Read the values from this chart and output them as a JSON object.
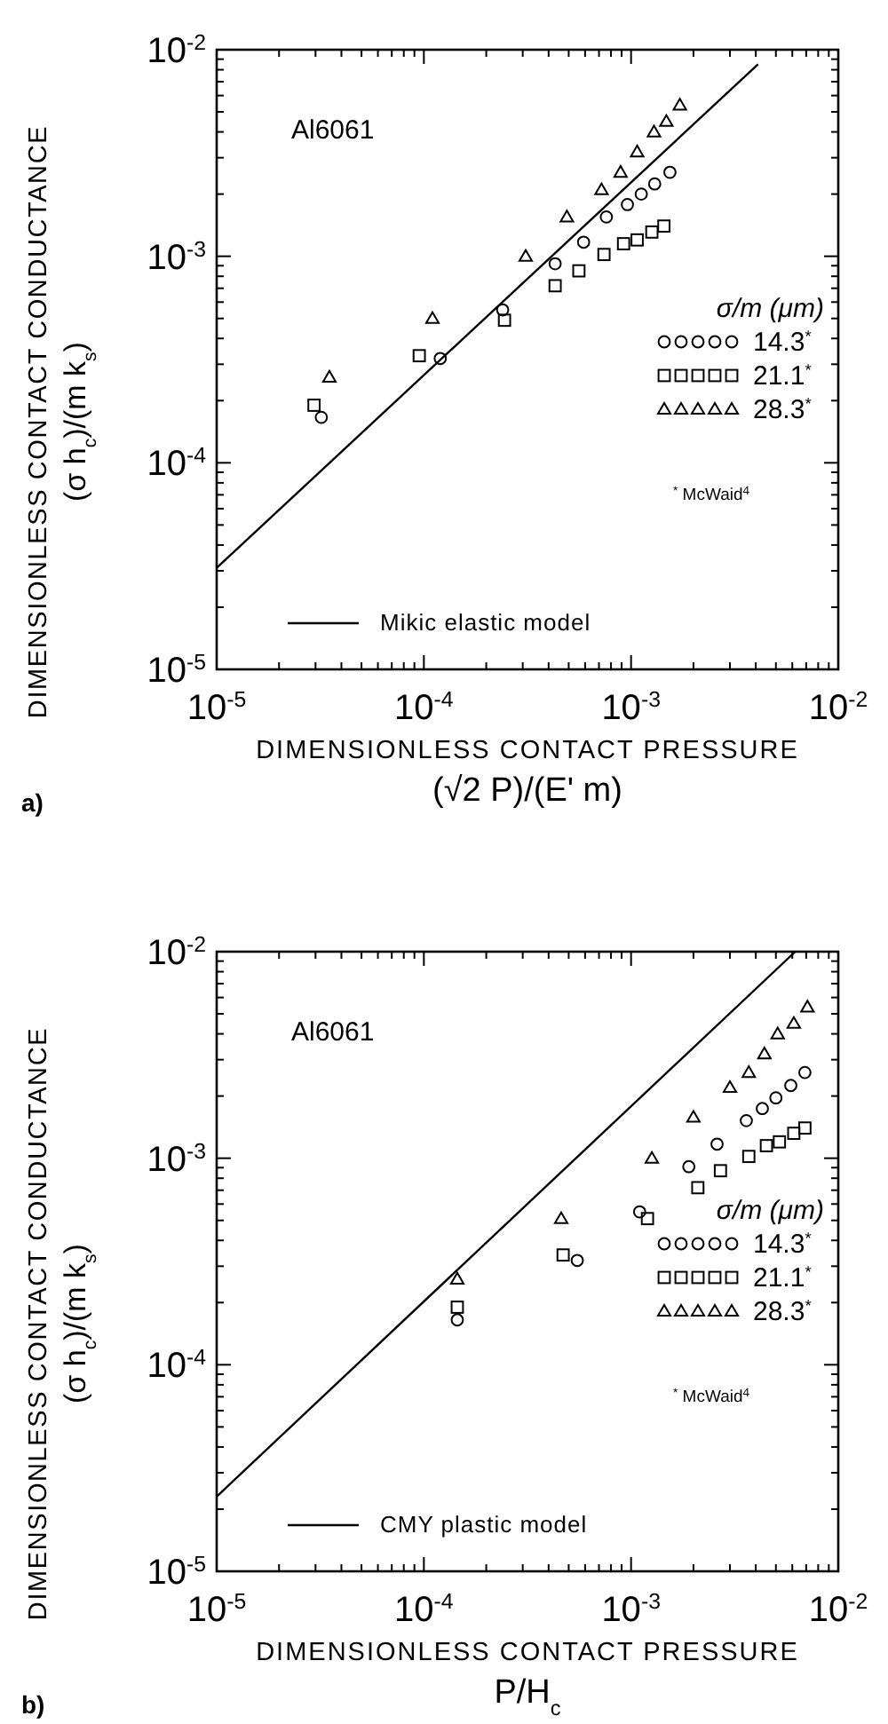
{
  "chart_data": [
    {
      "type": "scatter",
      "xlabel": "DIMENSIONLESS CONTACT PRESSURE\n(√2 P)/(E' m)",
      "ylabel": "DIMENSIONLESS CONTACT CONDUCTANCE\n(σ h$_{c}$)/(m k$_{s}$)",
      "log": "xy",
      "grid": false,
      "legend": "right",
      "legend_title": "σ/m (μm)",
      "annotations": [
        "Al6061",
        "$^{*}$ McWaid$^{4}$",
        "a)"
      ],
      "xlim": [
        1e-05,
        0.01
      ],
      "ylim": [
        1e-05,
        0.01
      ],
      "xticks": [
        {
          "value": 1e-05,
          "label": "10$^{-5}$"
        },
        {
          "value": 2e-05,
          "label": null
        },
        {
          "value": 3e-05,
          "label": null
        },
        {
          "value": 4e-05,
          "label": null
        },
        {
          "value": 5e-05,
          "label": null
        },
        {
          "value": 6e-05,
          "label": null
        },
        {
          "value": 7e-05,
          "label": null
        },
        {
          "value": 8e-05,
          "label": null
        },
        {
          "value": 9e-05,
          "label": null
        },
        {
          "value": 0.0001,
          "label": "10$^{-4}$"
        },
        {
          "value": 0.0002,
          "label": null
        },
        {
          "value": 0.0003,
          "label": null
        },
        {
          "value": 0.0004,
          "label": null
        },
        {
          "value": 0.0005,
          "label": null
        },
        {
          "value": 0.0006,
          "label": null
        },
        {
          "value": 0.0007,
          "label": null
        },
        {
          "value": 0.0008,
          "label": null
        },
        {
          "value": 0.0009,
          "label": null
        },
        {
          "value": 0.001,
          "label": "10$^{-3}$"
        },
        {
          "value": 0.002,
          "label": null
        },
        {
          "value": 0.003,
          "label": null
        },
        {
          "value": 0.004,
          "label": null
        },
        {
          "value": 0.005,
          "label": null
        },
        {
          "value": 0.006,
          "label": null
        },
        {
          "value": 0.007,
          "label": null
        },
        {
          "value": 0.008,
          "label": null
        },
        {
          "value": 0.009,
          "label": null
        },
        {
          "value": 0.01,
          "label": "10$^{-2}$"
        }
      ],
      "yticks": [
        {
          "value": 1e-05,
          "label": "10$^{-5}$"
        },
        {
          "value": 2e-05,
          "label": null
        },
        {
          "value": 3e-05,
          "label": null
        },
        {
          "value": 4e-05,
          "label": null
        },
        {
          "value": 5e-05,
          "label": null
        },
        {
          "value": 6e-05,
          "label": null
        },
        {
          "value": 7e-05,
          "label": null
        },
        {
          "value": 8e-05,
          "label": null
        },
        {
          "value": 9e-05,
          "label": null
        },
        {
          "value": 0.0001,
          "label": "10$^{-4}$"
        },
        {
          "value": 0.0002,
          "label": null
        },
        {
          "value": 0.0003,
          "label": null
        },
        {
          "value": 0.0004,
          "label": null
        },
        {
          "value": 0.0005,
          "label": null
        },
        {
          "value": 0.0006,
          "label": null
        },
        {
          "value": 0.0007,
          "label": null
        },
        {
          "value": 0.0008,
          "label": null
        },
        {
          "value": 0.0009,
          "label": null
        },
        {
          "value": 0.001,
          "label": "10$^{-3}$"
        },
        {
          "value": 0.002,
          "label": null
        },
        {
          "value": 0.003,
          "label": null
        },
        {
          "value": 0.004,
          "label": null
        },
        {
          "value": 0.005,
          "label": null
        },
        {
          "value": 0.006,
          "label": null
        },
        {
          "value": 0.007,
          "label": null
        },
        {
          "value": 0.008,
          "label": null
        },
        {
          "value": 0.009,
          "label": null
        },
        {
          "value": 0.01,
          "label": "10$^{-2}$"
        }
      ],
      "series": [
        {
          "name": "14.3$^{*}$",
          "color": "#000000",
          "marker": "circle",
          "x": [
            3.2e-05,
            0.00012,
            0.00024,
            0.00043,
            0.00059,
            0.00076,
            0.00096,
            0.00112,
            0.0013,
            0.00154
          ],
          "values": [
            0.000166,
            0.00032,
            0.00055,
            0.00092,
            0.00117,
            0.00155,
            0.00178,
            0.002,
            0.00224,
            0.00255
          ]
        },
        {
          "name": "21.1$^{*}$",
          "color": "#000000",
          "marker": "square",
          "x": [
            2.95e-05,
            9.5e-05,
            0.000245,
            0.00043,
            0.00056,
            0.00074,
            0.00092,
            0.00107,
            0.00126,
            0.00144
          ],
          "values": [
            0.00019,
            0.00033,
            0.00049,
            0.00072,
            0.00085,
            0.00102,
            0.00115,
            0.0012,
            0.00131,
            0.0014
          ]
        },
        {
          "name": "28.3$^{*}$",
          "color": "#000000",
          "marker": "triangle",
          "x": [
            3.5e-05,
            0.00011,
            0.00031,
            0.00049,
            0.00072,
            0.00089,
            0.00107,
            0.00129,
            0.00148,
            0.00172
          ],
          "values": [
            0.00026,
            0.0005,
            0.001,
            0.00155,
            0.0021,
            0.00255,
            0.0032,
            0.004,
            0.0045,
            0.0054
          ]
        },
        {
          "name": "Mikic elastic model",
          "type": "line",
          "color": "#000000",
          "line_style": "solid",
          "x": [
            1e-05,
            0.0041
          ],
          "values": [
            3.1e-05,
            0.0085
          ]
        }
      ]
    },
    {
      "type": "scatter",
      "xlabel": "DIMENSIONLESS CONTACT PRESSURE\nP/H$_{c}$",
      "ylabel": "DIMENSIONLESS CONTACT CONDUCTANCE\n(σ h$_{c}$)/(m k$_{s}$)",
      "log": "xy",
      "grid": false,
      "legend": "right",
      "legend_title": "σ/m (μm)",
      "annotations": [
        "Al6061",
        "$^{*}$ McWaid$^{4}$",
        "b)"
      ],
      "xlim": [
        1e-05,
        0.01
      ],
      "ylim": [
        1e-05,
        0.01
      ],
      "xticks": [
        {
          "value": 1e-05,
          "label": "10$^{-5}$"
        },
        {
          "value": 2e-05,
          "label": null
        },
        {
          "value": 3e-05,
          "label": null
        },
        {
          "value": 4e-05,
          "label": null
        },
        {
          "value": 5e-05,
          "label": null
        },
        {
          "value": 6e-05,
          "label": null
        },
        {
          "value": 7e-05,
          "label": null
        },
        {
          "value": 8e-05,
          "label": null
        },
        {
          "value": 9e-05,
          "label": null
        },
        {
          "value": 0.0001,
          "label": "10$^{-4}$"
        },
        {
          "value": 0.0002,
          "label": null
        },
        {
          "value": 0.0003,
          "label": null
        },
        {
          "value": 0.0004,
          "label": null
        },
        {
          "value": 0.0005,
          "label": null
        },
        {
          "value": 0.0006,
          "label": null
        },
        {
          "value": 0.0007,
          "label": null
        },
        {
          "value": 0.0008,
          "label": null
        },
        {
          "value": 0.0009,
          "label": null
        },
        {
          "value": 0.001,
          "label": "10$^{-3}$"
        },
        {
          "value": 0.002,
          "label": null
        },
        {
          "value": 0.003,
          "label": null
        },
        {
          "value": 0.004,
          "label": null
        },
        {
          "value": 0.005,
          "label": null
        },
        {
          "value": 0.006,
          "label": null
        },
        {
          "value": 0.007,
          "label": null
        },
        {
          "value": 0.008,
          "label": null
        },
        {
          "value": 0.009,
          "label": null
        },
        {
          "value": 0.01,
          "label": "10$^{-2}$"
        }
      ],
      "yticks": [
        {
          "value": 1e-05,
          "label": "10$^{-5}$"
        },
        {
          "value": 2e-05,
          "label": null
        },
        {
          "value": 3e-05,
          "label": null
        },
        {
          "value": 4e-05,
          "label": null
        },
        {
          "value": 5e-05,
          "label": null
        },
        {
          "value": 6e-05,
          "label": null
        },
        {
          "value": 7e-05,
          "label": null
        },
        {
          "value": 8e-05,
          "label": null
        },
        {
          "value": 9e-05,
          "label": null
        },
        {
          "value": 0.0001,
          "label": "10$^{-4}$"
        },
        {
          "value": 0.0002,
          "label": null
        },
        {
          "value": 0.0003,
          "label": null
        },
        {
          "value": 0.0004,
          "label": null
        },
        {
          "value": 0.0005,
          "label": null
        },
        {
          "value": 0.0006,
          "label": null
        },
        {
          "value": 0.0007,
          "label": null
        },
        {
          "value": 0.0008,
          "label": null
        },
        {
          "value": 0.0009,
          "label": null
        },
        {
          "value": 0.001,
          "label": "10$^{-3}$"
        },
        {
          "value": 0.002,
          "label": null
        },
        {
          "value": 0.003,
          "label": null
        },
        {
          "value": 0.004,
          "label": null
        },
        {
          "value": 0.005,
          "label": null
        },
        {
          "value": 0.006,
          "label": null
        },
        {
          "value": 0.007,
          "label": null
        },
        {
          "value": 0.008,
          "label": null
        },
        {
          "value": 0.009,
          "label": null
        },
        {
          "value": 0.01,
          "label": "10$^{-2}$"
        }
      ],
      "series": [
        {
          "name": "14.3$^{*}$",
          "color": "#000000",
          "marker": "circle",
          "x": [
            0.000145,
            0.00055,
            0.0011,
            0.0019,
            0.0026,
            0.0036,
            0.0043,
            0.005,
            0.0059,
            0.0069
          ],
          "values": [
            0.000165,
            0.00032,
            0.00055,
            0.00091,
            0.00117,
            0.00152,
            0.00174,
            0.00196,
            0.00225,
            0.0026
          ]
        },
        {
          "name": "21.1$^{*}$",
          "color": "#000000",
          "marker": "square",
          "x": [
            0.000145,
            0.00047,
            0.0012,
            0.0021,
            0.0027,
            0.0037,
            0.0045,
            0.0052,
            0.0061,
            0.0069
          ],
          "values": [
            0.00019,
            0.00034,
            0.00051,
            0.00072,
            0.00087,
            0.00102,
            0.00115,
            0.0012,
            0.00132,
            0.0014
          ]
        },
        {
          "name": "28.3$^{*}$",
          "color": "#000000",
          "marker": "triangle",
          "x": [
            0.000145,
            0.00046,
            0.00126,
            0.002,
            0.003,
            0.0037,
            0.0044,
            0.0051,
            0.0061,
            0.0071
          ],
          "values": [
            0.00026,
            0.00051,
            0.001,
            0.00158,
            0.0022,
            0.0026,
            0.0032,
            0.004,
            0.0045,
            0.0054
          ]
        },
        {
          "name": "CMY plastic model",
          "type": "line",
          "color": "#000000",
          "line_style": "solid",
          "x": [
            1e-05,
            0.0062
          ],
          "values": [
            2.3e-05,
            0.01
          ]
        }
      ]
    }
  ]
}
